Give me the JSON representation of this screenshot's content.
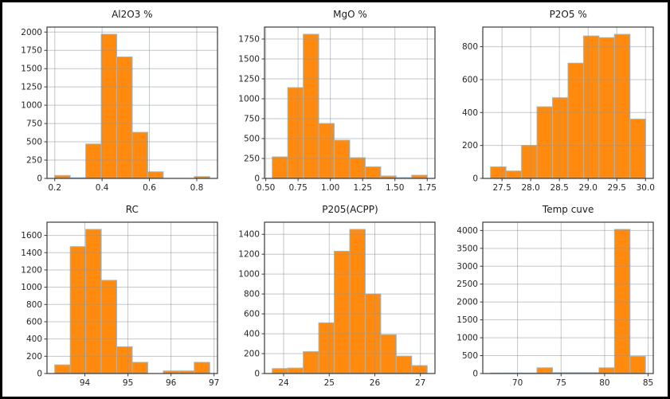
{
  "figure": {
    "background": "#ffffff",
    "border_color": "#000000",
    "layout": "2 rows x 3 columns of histograms"
  },
  "colors": {
    "bar_fill": "#ff8a0e",
    "bar_edge": "#8cbcdf",
    "grid": "#8c99a3",
    "spine": "#3a3a3a",
    "tick_label": "#262626",
    "title": "#1a1a1a"
  },
  "chart_data": [
    {
      "type": "bar",
      "title": "Al2O3 %",
      "xlabel": "",
      "ylabel": "",
      "grid": true,
      "bin_start": 0.2,
      "bin_width": 0.0655,
      "values": [
        40,
        8,
        470,
        1970,
        1660,
        630,
        90,
        0,
        0,
        25
      ],
      "ylim": [
        0,
        2068
      ],
      "x_ticks": [
        {
          "v": 0.2,
          "label": "0.2"
        },
        {
          "v": 0.4,
          "label": "0.4"
        },
        {
          "v": 0.6,
          "label": "0.6"
        },
        {
          "v": 0.8,
          "label": "0.8"
        }
      ],
      "y_ticks": [
        {
          "v": 0,
          "label": "0"
        },
        {
          "v": 250,
          "label": "250"
        },
        {
          "v": 500,
          "label": "500"
        },
        {
          "v": 750,
          "label": "750"
        },
        {
          "v": 1000,
          "label": "1000"
        },
        {
          "v": 1250,
          "label": "1250"
        },
        {
          "v": 1500,
          "label": "1500"
        },
        {
          "v": 1750,
          "label": "1750"
        },
        {
          "v": 2000,
          "label": "2000"
        }
      ]
    },
    {
      "type": "bar",
      "title": "MgO %",
      "xlabel": "",
      "ylabel": "",
      "grid": true,
      "bin_start": 0.55,
      "bin_width": 0.12,
      "values": [
        270,
        1140,
        1810,
        690,
        480,
        260,
        145,
        30,
        10,
        40
      ],
      "ylim": [
        0,
        1900
      ],
      "x_ticks": [
        {
          "v": 0.5,
          "label": "0.50"
        },
        {
          "v": 0.75,
          "label": "0.75"
        },
        {
          "v": 1.0,
          "label": "1.00"
        },
        {
          "v": 1.25,
          "label": "1.25"
        },
        {
          "v": 1.5,
          "label": "1.50"
        },
        {
          "v": 1.75,
          "label": "1.75"
        }
      ],
      "y_ticks": [
        {
          "v": 0,
          "label": "0"
        },
        {
          "v": 250,
          "label": "250"
        },
        {
          "v": 500,
          "label": "500"
        },
        {
          "v": 750,
          "label": "750"
        },
        {
          "v": 1000,
          "label": "1000"
        },
        {
          "v": 1250,
          "label": "1250"
        },
        {
          "v": 1500,
          "label": "1500"
        },
        {
          "v": 1750,
          "label": "1750"
        }
      ]
    },
    {
      "type": "bar",
      "title": "P2O5 %",
      "xlabel": "",
      "ylabel": "",
      "grid": true,
      "bin_start": 27.3,
      "bin_width": 0.27,
      "values": [
        70,
        45,
        200,
        435,
        490,
        700,
        865,
        855,
        875,
        360
      ],
      "ylim": [
        0,
        919
      ],
      "x_ticks": [
        {
          "v": 27.5,
          "label": "27.5"
        },
        {
          "v": 28.0,
          "label": "28.0"
        },
        {
          "v": 28.5,
          "label": "28.5"
        },
        {
          "v": 29.0,
          "label": "29.0"
        },
        {
          "v": 29.5,
          "label": "29.5"
        },
        {
          "v": 30.0,
          "label": "30.0"
        }
      ],
      "y_ticks": [
        {
          "v": 0,
          "label": "0"
        },
        {
          "v": 200,
          "label": "200"
        },
        {
          "v": 400,
          "label": "400"
        },
        {
          "v": 600,
          "label": "600"
        },
        {
          "v": 800,
          "label": "800"
        }
      ]
    },
    {
      "type": "bar",
      "title": "RC",
      "xlabel": "",
      "ylabel": "",
      "grid": true,
      "bin_start": 93.3,
      "bin_width": 0.36,
      "values": [
        100,
        1470,
        1670,
        1080,
        310,
        130,
        0,
        30,
        30,
        130
      ],
      "ylim": [
        0,
        1753
      ],
      "x_ticks": [
        {
          "v": 94,
          "label": "94"
        },
        {
          "v": 95,
          "label": "95"
        },
        {
          "v": 96,
          "label": "96"
        },
        {
          "v": 97,
          "label": "97"
        }
      ],
      "y_ticks": [
        {
          "v": 0,
          "label": "0"
        },
        {
          "v": 200,
          "label": "200"
        },
        {
          "v": 400,
          "label": "400"
        },
        {
          "v": 600,
          "label": "600"
        },
        {
          "v": 800,
          "label": "800"
        },
        {
          "v": 1000,
          "label": "1000"
        },
        {
          "v": 1200,
          "label": "1200"
        },
        {
          "v": 1400,
          "label": "1400"
        },
        {
          "v": 1600,
          "label": "1600"
        }
      ]
    },
    {
      "type": "bar",
      "title": "P205(ACPP)",
      "xlabel": "",
      "ylabel": "",
      "grid": true,
      "bin_start": 23.75,
      "bin_width": 0.34,
      "values": [
        50,
        55,
        220,
        510,
        1230,
        1450,
        800,
        390,
        175,
        80
      ],
      "ylim": [
        0,
        1522
      ],
      "x_ticks": [
        {
          "v": 24,
          "label": "24"
        },
        {
          "v": 25,
          "label": "25"
        },
        {
          "v": 26,
          "label": "26"
        },
        {
          "v": 27,
          "label": "27"
        }
      ],
      "y_ticks": [
        {
          "v": 0,
          "label": "0"
        },
        {
          "v": 200,
          "label": "200"
        },
        {
          "v": 400,
          "label": "400"
        },
        {
          "v": 600,
          "label": "600"
        },
        {
          "v": 800,
          "label": "800"
        },
        {
          "v": 1000,
          "label": "1000"
        },
        {
          "v": 1200,
          "label": "1200"
        },
        {
          "v": 1400,
          "label": "1400"
        }
      ]
    },
    {
      "type": "bar",
      "title": "Temp cuve",
      "xlabel": "",
      "ylabel": "",
      "grid": true,
      "bin_start": 66.9,
      "bin_width": 1.78,
      "values": [
        15,
        15,
        15,
        160,
        25,
        25,
        25,
        160,
        4030,
        480
      ],
      "ylim": [
        0,
        4231
      ],
      "x_ticks": [
        {
          "v": 70,
          "label": "70"
        },
        {
          "v": 75,
          "label": "75"
        },
        {
          "v": 80,
          "label": "80"
        },
        {
          "v": 85,
          "label": "85"
        }
      ],
      "y_ticks": [
        {
          "v": 0,
          "label": "0"
        },
        {
          "v": 500,
          "label": "500"
        },
        {
          "v": 1000,
          "label": "1000"
        },
        {
          "v": 1500,
          "label": "1500"
        },
        {
          "v": 2000,
          "label": "2000"
        },
        {
          "v": 2500,
          "label": "2500"
        },
        {
          "v": 3000,
          "label": "3000"
        },
        {
          "v": 3500,
          "label": "3500"
        },
        {
          "v": 4000,
          "label": "4000"
        }
      ]
    }
  ]
}
